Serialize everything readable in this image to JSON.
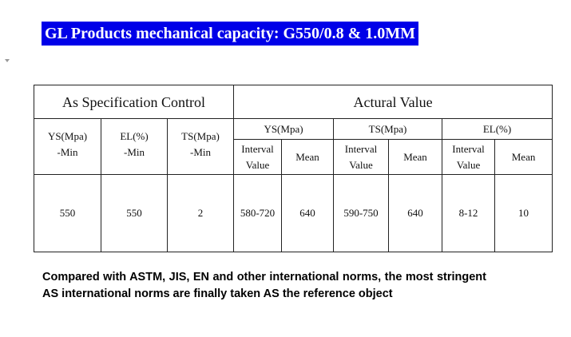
{
  "title": "GL Products mechanical capacity: G550/0.8 & 1.0MM",
  "table": {
    "header": [
      "As Specification Control",
      "Actural Value"
    ],
    "spec_columns": [
      {
        "name": "YS(Mpa)",
        "sub": "-Min"
      },
      {
        "name": "EL(%)",
        "sub": "-Min"
      },
      {
        "name": "TS(Mpa)",
        "sub": "-Min"
      }
    ],
    "actual_groups": [
      {
        "name": "YS(Mpa)",
        "columns": [
          "Interval Value",
          "Mean"
        ]
      },
      {
        "name": "TS(Mpa)",
        "columns": [
          "Interval Value",
          "Mean"
        ]
      },
      {
        "name": "EL(%)",
        "columns": [
          "Interval Value",
          "Mean"
        ]
      }
    ],
    "rows": [
      [
        550,
        550,
        2,
        "580-720",
        640,
        "590-750",
        640,
        "8-12",
        10
      ]
    ]
  },
  "note": "Compared with ASTM, JIS, EN and other international norms, the most stringent AS international norms are finally taken AS the reference object"
}
